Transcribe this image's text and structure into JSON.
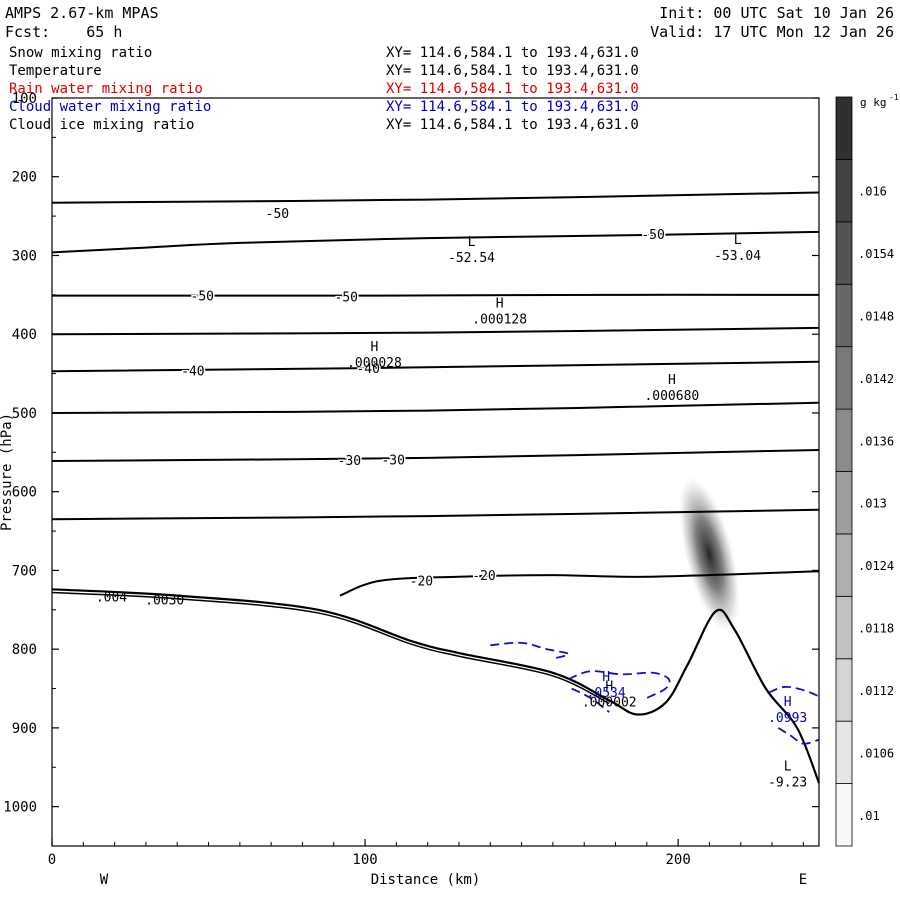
{
  "header": {
    "model": "AMPS 2.67-km MPAS",
    "fcst": "Fcst:    65 h",
    "init": "Init: 00 UTC Sat 10 Jan 26",
    "valid": "Valid: 17 UTC Mon 12 Jan 26"
  },
  "legend": [
    {
      "name": "Snow mixing ratio",
      "xy": "XY= 114.6,584.1 to 193.4,631.0",
      "color": "#000000"
    },
    {
      "name": "Temperature",
      "xy": "XY= 114.6,584.1 to 193.4,631.0",
      "color": "#000000"
    },
    {
      "name": "Rain water mixing ratio",
      "xy": "XY= 114.6,584.1 to 193.4,631.0",
      "color": "#e00000"
    },
    {
      "name": "Cloud water mixing ratio",
      "xy": "XY= 114.6,584.1 to 193.4,631.0",
      "color": "#0000c0"
    },
    {
      "name": "Cloud ice mixing ratio",
      "xy": "XY= 114.6,584.1 to 193.4,631.0",
      "color": "#000000"
    }
  ],
  "chart_data": {
    "type": "cross-section",
    "xlabel": "Distance (km)",
    "ylabel": "Pressure (hPa)",
    "xlim": [
      0,
      245
    ],
    "ylim": [
      1050,
      100
    ],
    "x_ticks": [
      0,
      100,
      200
    ],
    "y_ticks": [
      100,
      200,
      300,
      400,
      500,
      600,
      700,
      800,
      900,
      1000
    ],
    "x_end_labels": {
      "left": "W",
      "right": "E"
    },
    "colorbar": {
      "unit": "g kg",
      "unit_exp": "-1",
      "levels": [
        ".01",
        ".0106",
        ".0112",
        ".0118",
        ".0124",
        ".013",
        ".0136",
        ".0142",
        ".0148",
        ".0154",
        ".016"
      ]
    },
    "temperature_contours": [
      {
        "points": [
          [
            0,
            233
          ],
          [
            120,
            229
          ],
          [
            245,
            220
          ]
        ]
      },
      {
        "points": [
          [
            0,
            296
          ],
          [
            30,
            290
          ],
          [
            60,
            284
          ],
          [
            120,
            278
          ],
          [
            190,
            274
          ],
          [
            245,
            270
          ]
        ]
      },
      {
        "points": [
          [
            0,
            351
          ],
          [
            100,
            351
          ],
          [
            180,
            350
          ],
          [
            245,
            350
          ]
        ]
      },
      {
        "points": [
          [
            0,
            400
          ],
          [
            120,
            398
          ],
          [
            245,
            392
          ]
        ]
      },
      {
        "points": [
          [
            0,
            447
          ],
          [
            100,
            443
          ],
          [
            245,
            435
          ]
        ]
      },
      {
        "points": [
          [
            0,
            500
          ],
          [
            120,
            497
          ],
          [
            245,
            487
          ]
        ]
      },
      {
        "points": [
          [
            0,
            561
          ],
          [
            120,
            557
          ],
          [
            245,
            547
          ]
        ]
      },
      {
        "points": [
          [
            0,
            635
          ],
          [
            120,
            631
          ],
          [
            245,
            623
          ]
        ]
      },
      {
        "points": [
          [
            92,
            732
          ],
          [
            105,
            713
          ],
          [
            130,
            708
          ],
          [
            160,
            706
          ],
          [
            190,
            708
          ],
          [
            245,
            701
          ]
        ]
      }
    ],
    "contour_labels": [
      {
        "text": "-50",
        "x": 72,
        "p": 246
      },
      {
        "text": "-50",
        "x": 192,
        "p": 273
      },
      {
        "text": "-50",
        "x": 48,
        "p": 351
      },
      {
        "text": "-50",
        "x": 94,
        "p": 352
      },
      {
        "text": "-40",
        "x": 45,
        "p": 446
      },
      {
        "text": "-40",
        "x": 101,
        "p": 443
      },
      {
        "text": "-30",
        "x": 95,
        "p": 560
      },
      {
        "text": "-30",
        "x": 109,
        "p": 559
      },
      {
        "text": "-20",
        "x": 118,
        "p": 713
      },
      {
        "text": "-20",
        "x": 138,
        "p": 706
      }
    ],
    "extrema": [
      {
        "mark": "L",
        "value": "-52.54",
        "x": 134,
        "p": 306,
        "color": "#000000"
      },
      {
        "mark": "L",
        "value": "-53.04",
        "x": 219,
        "p": 303,
        "color": "#000000"
      },
      {
        "mark": "H",
        "value": ".000128",
        "x": 143,
        "p": 384,
        "color": "#000000"
      },
      {
        "mark": "H",
        "value": ".000028",
        "x": 103,
        "p": 439,
        "color": "#000000"
      },
      {
        "mark": "H",
        "value": ".000680",
        "x": 198,
        "p": 481,
        "color": "#000000"
      },
      {
        "mark": "H",
        "value": ".000002",
        "x": 178,
        "p": 870,
        "color": "#000000"
      },
      {
        "mark": "H",
        "value": ".0534",
        "x": 177,
        "p": 858,
        "color": "#0000c0"
      },
      {
        "mark": "H",
        "value": ".0993",
        "x": 235,
        "p": 890,
        "color": "#0000c0"
      },
      {
        "mark": "L",
        "value": "-9.23",
        "x": 235,
        "p": 972,
        "color": "#000000"
      }
    ],
    "surface_labels": [
      {
        "text": ".004",
        "x": 19,
        "p": 729
      },
      {
        "text": ".0030",
        "x": 36,
        "p": 733
      }
    ],
    "terrain": [
      [
        0,
        724
      ],
      [
        40,
        732
      ],
      [
        85,
        750
      ],
      [
        115,
        790
      ],
      [
        130,
        805
      ],
      [
        160,
        830
      ],
      [
        178,
        865
      ],
      [
        187,
        883
      ],
      [
        196,
        868
      ],
      [
        203,
        820
      ],
      [
        212,
        752
      ],
      [
        218,
        775
      ],
      [
        228,
        850
      ],
      [
        238,
        900
      ],
      [
        245,
        970
      ]
    ],
    "cloud_ice_max": {
      "x": 210,
      "p": 680,
      "value_range": [
        0.01,
        0.016
      ]
    }
  }
}
